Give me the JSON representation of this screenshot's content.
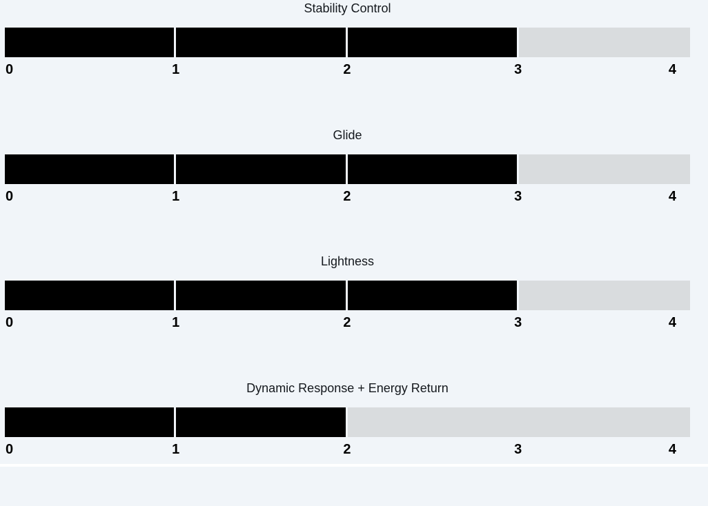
{
  "page": {
    "background_color": "#f1f5f9",
    "track_color": "#d9dcde",
    "fill_color": "#000000",
    "title_text_color": "#14181d"
  },
  "chart_data": {
    "type": "bar",
    "orientation": "horizontal",
    "grid": false,
    "legend": false,
    "scale": {
      "min": 0,
      "max": 4,
      "tick_labels": [
        "0",
        "1",
        "2",
        "3",
        "4"
      ]
    },
    "charts": [
      {
        "title": "Stability Control",
        "value": 3,
        "max": 4
      },
      {
        "title": "Glide",
        "value": 3,
        "max": 4
      },
      {
        "title": "Lightness",
        "value": 3,
        "max": 4
      },
      {
        "title": "Dynamic Response + Energy Return",
        "value": 2,
        "max": 4
      }
    ]
  }
}
